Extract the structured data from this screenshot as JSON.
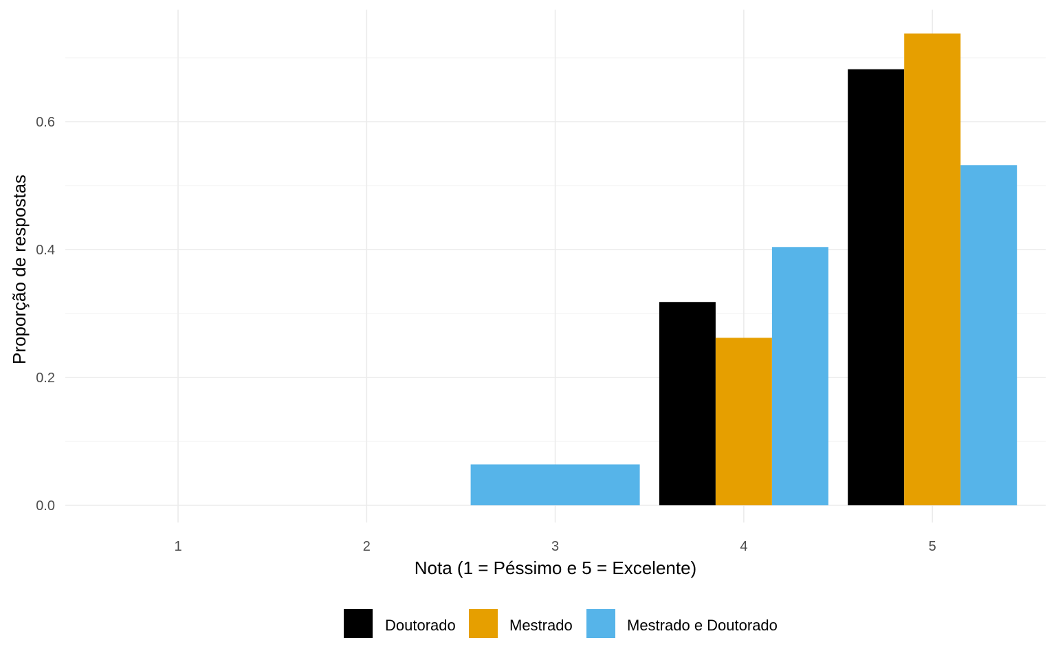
{
  "chart_data": {
    "type": "bar",
    "xlabel": "Nota (1 = Péssimo e 5 = Excelente)",
    "ylabel": "Proporção de respostas",
    "categories": [
      "1",
      "2",
      "3",
      "4",
      "5"
    ],
    "y_ticks": [
      "0.0",
      "0.2",
      "0.4",
      "0.6"
    ],
    "ylim": [
      0,
      0.75
    ],
    "grid": true,
    "legend_position": "bottom",
    "series": [
      {
        "name": "Doutorado",
        "color": "#000000",
        "values": [
          null,
          null,
          null,
          0.318,
          0.682
        ]
      },
      {
        "name": "Mestrado",
        "color": "#E69F00",
        "values": [
          null,
          null,
          null,
          0.262,
          0.738
        ]
      },
      {
        "name": "Mestrado e Doutorado",
        "color": "#56B4E9",
        "values": [
          null,
          null,
          0.064,
          0.404,
          0.532
        ]
      }
    ]
  }
}
